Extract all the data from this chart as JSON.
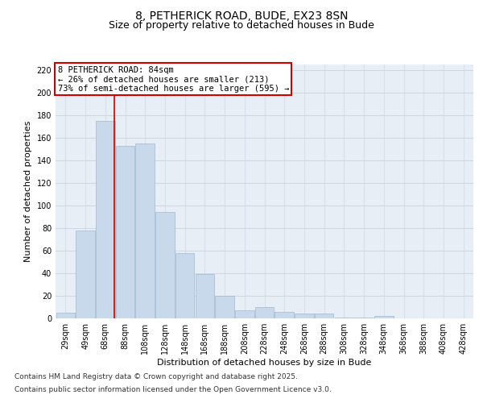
{
  "title_line1": "8, PETHERICK ROAD, BUDE, EX23 8SN",
  "title_line2": "Size of property relative to detached houses in Bude",
  "xlabel": "Distribution of detached houses by size in Bude",
  "ylabel": "Number of detached properties",
  "categories": [
    "29sqm",
    "49sqm",
    "68sqm",
    "88sqm",
    "108sqm",
    "128sqm",
    "148sqm",
    "168sqm",
    "188sqm",
    "208sqm",
    "228sqm",
    "248sqm",
    "268sqm",
    "288sqm",
    "308sqm",
    "328sqm",
    "348sqm",
    "368sqm",
    "388sqm",
    "408sqm",
    "428sqm"
  ],
  "bar_heights": [
    5,
    78,
    175,
    153,
    155,
    94,
    58,
    39,
    20,
    7,
    10,
    6,
    4,
    4,
    1,
    1,
    2,
    0,
    0,
    0,
    0
  ],
  "bar_color": "#c8d9eb",
  "bar_edge_color": "#a0b8d0",
  "grid_color": "#ccd6e8",
  "background_color": "#e8eef6",
  "vline_index": 2.45,
  "vline_color": "#cc0000",
  "annotation_text": "8 PETHERICK ROAD: 84sqm\n← 26% of detached houses are smaller (213)\n73% of semi-detached houses are larger (595) →",
  "ylim_max": 225,
  "yticks": [
    0,
    20,
    40,
    60,
    80,
    100,
    120,
    140,
    160,
    180,
    200,
    220
  ],
  "footer_line1": "Contains HM Land Registry data © Crown copyright and database right 2025.",
  "footer_line2": "Contains public sector information licensed under the Open Government Licence v3.0.",
  "title_fontsize": 10,
  "subtitle_fontsize": 9,
  "axis_label_fontsize": 8,
  "tick_fontsize": 7,
  "annot_fontsize": 7.5,
  "footer_fontsize": 6.5
}
